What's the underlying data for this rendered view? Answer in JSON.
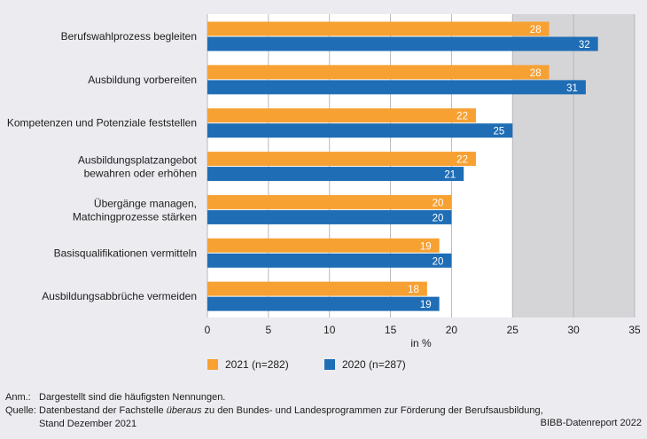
{
  "chart_data": {
    "type": "bar",
    "orientation": "horizontal",
    "categories": [
      [
        "Berufswahlprozess begleiten"
      ],
      [
        "Ausbildung vorbereiten"
      ],
      [
        "Kompetenzen und Potenziale feststellen"
      ],
      [
        "Ausbildungsplatzangebot",
        "bewahren oder erhöhen"
      ],
      [
        "Übergänge managen,",
        "Matchingprozesse stärken"
      ],
      [
        "Basisqualifikationen vermitteln"
      ],
      [
        "Ausbildungsabbrüche vermeiden"
      ]
    ],
    "series": [
      {
        "name": "2021 (n=282)",
        "color": "#f7a133",
        "values": [
          28,
          28,
          22,
          22,
          20,
          19,
          18
        ]
      },
      {
        "name": "2020 (n=287)",
        "color": "#1f6db5",
        "values": [
          32,
          31,
          25,
          21,
          20,
          20,
          19
        ]
      }
    ],
    "xlabel": "in %",
    "xlim": [
      0,
      35
    ],
    "xticks": [
      0,
      5,
      10,
      15,
      20,
      25,
      30,
      35
    ],
    "shaded_from": 25,
    "legend_position": "bottom"
  },
  "notes": {
    "anm_label": "Anm.:",
    "anm_text": "Dargestellt sind die häufigsten Nennungen.",
    "quelle_label": "Quelle:",
    "quelle_text_1": "Datenbestand der Fachstelle ",
    "quelle_text_italic": "überaus",
    "quelle_text_2": " zu den Bundes- und Landesprogrammen zur Förderung der Berufsausbildung,",
    "quelle_text_3": "Stand Dezember 2021"
  },
  "credit": "BIBB-Datenreport 2022",
  "colors": {
    "background": "#ececf0",
    "plot_white": "#ffffff",
    "plot_shade": "#d5d5d8",
    "gridline": "#b8b8bc"
  }
}
